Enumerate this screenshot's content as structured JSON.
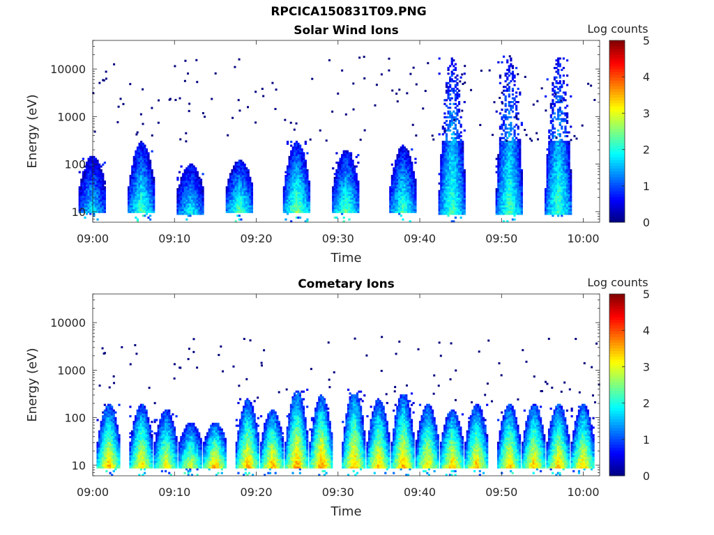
{
  "figure_title": "RPCICA150831T09.PNG",
  "colors": {
    "colormap": [
      "#00007f",
      "#0000ff",
      "#007fff",
      "#00ffff",
      "#7fff7f",
      "#ffff00",
      "#ff7f00",
      "#ff0000",
      "#7f0000"
    ]
  },
  "chart_data": [
    {
      "type": "heatmap",
      "title": "Solar Wind Ions",
      "xlabel": "Time",
      "ylabel": "Energy (eV)",
      "y_scale": "log",
      "ylim": [
        6,
        40000
      ],
      "xlim": [
        "09:00",
        "10:02"
      ],
      "x_ticks": [
        "09:00",
        "09:10",
        "09:20",
        "09:30",
        "09:40",
        "09:50",
        "10:00"
      ],
      "y_ticks": [
        "10",
        "100",
        "1000",
        "10000"
      ],
      "colorbar": {
        "label": "Log counts",
        "range": [
          0,
          5
        ],
        "ticks": [
          "0",
          "1",
          "2",
          "3",
          "4",
          "5"
        ]
      },
      "bursts": [
        {
          "center_time": "09:00",
          "peak_energy_ev": 35,
          "peak_log_counts": 1.8,
          "max_energy_ev": 150
        },
        {
          "center_time": "09:06",
          "peak_energy_ev": 35,
          "peak_log_counts": 2.3,
          "max_energy_ev": 300
        },
        {
          "center_time": "09:12",
          "peak_energy_ev": 30,
          "peak_log_counts": 2.0,
          "max_energy_ev": 100
        },
        {
          "center_time": "09:18",
          "peak_energy_ev": 35,
          "peak_log_counts": 2.4,
          "max_energy_ev": 120
        },
        {
          "center_time": "09:25",
          "peak_energy_ev": 35,
          "peak_log_counts": 2.6,
          "max_energy_ev": 300
        },
        {
          "center_time": "09:31",
          "peak_energy_ev": 35,
          "peak_log_counts": 2.4,
          "max_energy_ev": 200
        },
        {
          "center_time": "09:38",
          "peak_energy_ev": 35,
          "peak_log_counts": 2.3,
          "max_energy_ev": 250
        },
        {
          "center_time": "09:44",
          "peak_energy_ev": 30,
          "peak_log_counts": 2.3,
          "max_energy_ev": 20000
        },
        {
          "center_time": "09:51",
          "peak_energy_ev": 30,
          "peak_log_counts": 2.3,
          "max_energy_ev": 20000
        },
        {
          "center_time": "09:57",
          "peak_energy_ev": 30,
          "peak_log_counts": 2.3,
          "max_energy_ev": 20000
        }
      ]
    },
    {
      "type": "heatmap",
      "title": "Cometary Ions",
      "xlabel": "Time",
      "ylabel": "Energy (eV)",
      "y_scale": "log",
      "ylim": [
        6,
        40000
      ],
      "xlim": [
        "09:00",
        "10:02"
      ],
      "x_ticks": [
        "09:00",
        "09:10",
        "09:20",
        "09:30",
        "09:40",
        "09:50",
        "10:00"
      ],
      "y_ticks": [
        "10",
        "100",
        "1000",
        "10000"
      ],
      "colorbar": {
        "label": "Log counts",
        "range": [
          0,
          5
        ],
        "ticks": [
          "0",
          "1",
          "2",
          "3",
          "4",
          "5"
        ]
      },
      "bursts": [
        {
          "center_time": "09:02",
          "peak_energy_ev": 30,
          "peak_log_counts": 3.6,
          "max_energy_ev": 200
        },
        {
          "center_time": "09:06",
          "peak_energy_ev": 30,
          "peak_log_counts": 3.5,
          "max_energy_ev": 200
        },
        {
          "center_time": "09:09",
          "peak_energy_ev": 30,
          "peak_log_counts": 3.3,
          "max_energy_ev": 150
        },
        {
          "center_time": "09:12",
          "peak_energy_ev": 30,
          "peak_log_counts": 3.2,
          "max_energy_ev": 80
        },
        {
          "center_time": "09:15",
          "peak_energy_ev": 30,
          "peak_log_counts": 3.8,
          "max_energy_ev": 80
        },
        {
          "center_time": "09:19",
          "peak_energy_ev": 30,
          "peak_log_counts": 3.7,
          "max_energy_ev": 250
        },
        {
          "center_time": "09:22",
          "peak_energy_ev": 30,
          "peak_log_counts": 3.7,
          "max_energy_ev": 150
        },
        {
          "center_time": "09:25",
          "peak_energy_ev": 30,
          "peak_log_counts": 3.8,
          "max_energy_ev": 400
        },
        {
          "center_time": "09:28",
          "peak_energy_ev": 30,
          "peak_log_counts": 3.9,
          "max_energy_ev": 300
        },
        {
          "center_time": "09:32",
          "peak_energy_ev": 30,
          "peak_log_counts": 3.7,
          "max_energy_ev": 400
        },
        {
          "center_time": "09:35",
          "peak_energy_ev": 30,
          "peak_log_counts": 3.6,
          "max_energy_ev": 250
        },
        {
          "center_time": "09:38",
          "peak_energy_ev": 30,
          "peak_log_counts": 3.7,
          "max_energy_ev": 350
        },
        {
          "center_time": "09:41",
          "peak_energy_ev": 30,
          "peak_log_counts": 3.5,
          "max_energy_ev": 200
        },
        {
          "center_time": "09:44",
          "peak_energy_ev": 30,
          "peak_log_counts": 3.7,
          "max_energy_ev": 150
        },
        {
          "center_time": "09:47",
          "peak_energy_ev": 30,
          "peak_log_counts": 3.6,
          "max_energy_ev": 200
        },
        {
          "center_time": "09:51",
          "peak_energy_ev": 30,
          "peak_log_counts": 3.6,
          "max_energy_ev": 200
        },
        {
          "center_time": "09:54",
          "peak_energy_ev": 30,
          "peak_log_counts": 3.6,
          "max_energy_ev": 200
        },
        {
          "center_time": "09:57",
          "peak_energy_ev": 30,
          "peak_log_counts": 3.6,
          "max_energy_ev": 200
        },
        {
          "center_time": "10:00",
          "peak_energy_ev": 30,
          "peak_log_counts": 3.6,
          "max_energy_ev": 200
        }
      ]
    }
  ]
}
